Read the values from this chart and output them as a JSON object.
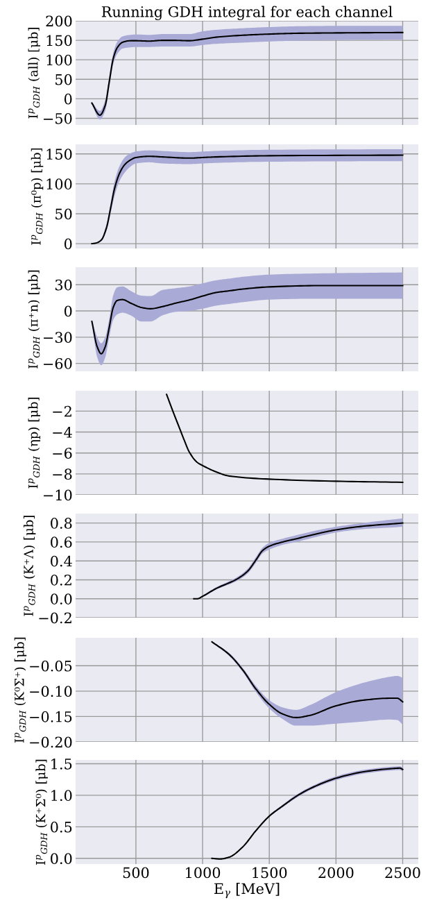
{
  "chart_data": [
    {
      "type": "line",
      "title": "Running GDH integral for each channel",
      "ylabel": "I$^{p}$$_{GDH}$ (all) [μb]",
      "xlim": [
        48,
        2617
      ],
      "xticks": [
        500,
        1000,
        1500,
        2000,
        2500
      ],
      "ylim": [
        -67,
        200
      ],
      "yticks": [
        -50,
        0,
        50,
        100,
        150,
        200
      ],
      "grid": true,
      "tick_labels": "y",
      "x": [
        170,
        230,
        270,
        300,
        330,
        360,
        400,
        460,
        500,
        600,
        700,
        780,
        900,
        1000,
        1100,
        1300,
        1500,
        1700,
        2000,
        2500
      ],
      "series": [
        {
          "color": "#000000",
          "values": [
            -11,
            -42,
            -17,
            43,
            103,
            131,
            145,
            149,
            149,
            148,
            150,
            150,
            149,
            153,
            158,
            163,
            166,
            168,
            169,
            170
          ],
          "lower": [
            -15,
            -53,
            -31,
            29,
            89,
            115,
            129,
            132,
            133,
            133,
            134,
            134,
            134,
            138,
            141,
            144,
            147,
            149,
            151,
            152
          ],
          "upper": [
            -8,
            -31,
            -3,
            57,
            117,
            146,
            160,
            164,
            165,
            164,
            166,
            166,
            166,
            173,
            177,
            181,
            184,
            186,
            187,
            187
          ]
        }
      ]
    },
    {
      "type": "line",
      "ylabel": "I$^{p}$$_{GDH}$ (π⁰p) [μb]",
      "xlim": [
        48,
        2617
      ],
      "xticks": [
        500,
        1000,
        1500,
        2000,
        2500
      ],
      "ylim": [
        -8,
        166
      ],
      "yticks": [
        0,
        50,
        100,
        150
      ],
      "grid": true,
      "tick_labels": "y",
      "x": [
        170,
        200,
        240,
        280,
        310,
        340,
        380,
        420,
        460,
        500,
        600,
        700,
        900,
        1000,
        1100,
        1500,
        2500
      ],
      "series": [
        {
          "color": "#000000",
          "values": [
            0,
            1,
            6,
            27,
            59,
            92,
            119,
            133,
            140,
            144,
            146,
            145,
            143,
            144,
            145,
            147,
            148
          ],
          "lower": [
            0,
            0,
            4,
            22,
            50,
            80,
            106,
            120,
            129,
            134,
            136,
            134,
            133,
            134,
            135,
            137,
            138
          ],
          "upper": [
            0,
            2,
            8,
            33,
            67,
            104,
            131,
            145,
            151,
            154,
            156,
            155,
            153,
            154,
            155,
            157,
            158
          ]
        }
      ]
    },
    {
      "type": "line",
      "ylabel": "I$^{p}$$_{GDH}$ (π⁺n) [μb]",
      "xlim": [
        48,
        2617
      ],
      "xticks": [
        500,
        1000,
        1500,
        2000,
        2500
      ],
      "ylim": [
        -69,
        50
      ],
      "yticks": [
        -60,
        -30,
        0,
        30
      ],
      "grid": true,
      "tick_labels": "y",
      "x": [
        170,
        210,
        240,
        270,
        300,
        330,
        360,
        400,
        460,
        540,
        610,
        700,
        800,
        900,
        1000,
        1100,
        1200,
        1300,
        1500,
        1900,
        2500
      ],
      "series": [
        {
          "color": "#000000",
          "values": [
            -12,
            -41,
            -49,
            -41,
            -19,
            4,
            12,
            13,
            9,
            4,
            2.5,
            5,
            9,
            12.5,
            17,
            21,
            23,
            25,
            27.5,
            29,
            29
          ],
          "lower": [
            -14,
            -53,
            -62,
            -53,
            -30,
            -10,
            -4,
            -2,
            -5,
            -12,
            -12,
            -5,
            -1,
            0,
            2.5,
            6,
            8,
            10,
            13,
            14,
            14
          ],
          "upper": [
            -10,
            -30,
            -37,
            -30,
            -9,
            18,
            27,
            28,
            23,
            17.5,
            17,
            24,
            26,
            28,
            31.5,
            35,
            37,
            39,
            41.5,
            43,
            44
          ]
        }
      ]
    },
    {
      "type": "line",
      "ylabel": "I$^{p}$$_{GDH}$ (ηp) [μb]",
      "xlim": [
        48,
        2617
      ],
      "xticks": [
        500,
        1000,
        1500,
        2000,
        2500
      ],
      "ylim": [
        -10,
        -0.05
      ],
      "yticks": [
        -10,
        -8,
        -6,
        -4,
        -2
      ],
      "grid": true,
      "tick_labels": "y",
      "x": [
        730,
        780,
        820,
        860,
        900,
        960,
        1000,
        1100,
        1200,
        1500,
        2000,
        2500
      ],
      "series": [
        {
          "color": "#000000",
          "values": [
            -0.4,
            -2.1,
            -3.4,
            -4.7,
            -5.9,
            -6.9,
            -7.2,
            -7.8,
            -8.2,
            -8.5,
            -8.7,
            -8.8
          ]
        }
      ]
    },
    {
      "type": "line",
      "ylabel": "I$^{p}$$_{GDH}$ (K⁺Λ) [μb]",
      "xlim": [
        48,
        2617
      ],
      "xticks": [
        500,
        1000,
        1500,
        2000,
        2500
      ],
      "ylim": [
        -0.2,
        0.9
      ],
      "yticks": [
        -0.2,
        {
          "value": 0,
          "label": "0.0"
        },
        0.2,
        0.4,
        0.6,
        0.8
      ],
      "grid": true,
      "tick_labels": "y",
      "x": [
        934,
        960,
        1000,
        1100,
        1260,
        1340,
        1400,
        1450,
        1500,
        1600,
        1700,
        1900,
        2000,
        2200,
        2500
      ],
      "series": [
        {
          "color": "#000000",
          "values": [
            0.0,
            0.0,
            0.026,
            0.107,
            0.21,
            0.295,
            0.41,
            0.51,
            0.555,
            0.6,
            0.633,
            0.7,
            0.728,
            0.766,
            0.8
          ],
          "lower": [
            0.0,
            0.0,
            0.018,
            0.095,
            0.19,
            0.27,
            0.38,
            0.48,
            0.52,
            0.57,
            0.6,
            0.67,
            0.7,
            0.735,
            0.76
          ],
          "upper": [
            0.0,
            0.0,
            0.034,
            0.12,
            0.23,
            0.32,
            0.44,
            0.54,
            0.59,
            0.635,
            0.67,
            0.735,
            0.76,
            0.8,
            0.85
          ]
        }
      ]
    },
    {
      "type": "line",
      "ylabel": "I$^{p}$$_{GDH}$ (K⁰Σ⁺) [μb]",
      "xlim": [
        48,
        2617
      ],
      "xticks": [
        500,
        1000,
        1500,
        2000,
        2500
      ],
      "ylim": [
        -0.2,
        0.005
      ],
      "yticks": [
        {
          "value": -0.2,
          "label": "−0.20"
        },
        -0.15,
        {
          "value": -0.1,
          "label": "−0.10"
        },
        -0.05
      ],
      "grid": true,
      "tick_labels": "y",
      "x": [
        1070,
        1200,
        1300,
        1400,
        1500,
        1600,
        1700,
        1800,
        2000,
        2200,
        2400,
        2460,
        2500
      ],
      "series": [
        {
          "color": "#000000",
          "values": [
            -0.003,
            -0.028,
            -0.058,
            -0.096,
            -0.126,
            -0.145,
            -0.152,
            -0.148,
            -0.129,
            -0.118,
            -0.114,
            -0.114,
            -0.121
          ],
          "lower": [
            -0.004,
            -0.031,
            -0.062,
            -0.102,
            -0.134,
            -0.155,
            -0.168,
            -0.168,
            -0.164,
            -0.16,
            -0.156,
            -0.157,
            -0.166
          ],
          "upper": [
            -0.002,
            -0.025,
            -0.054,
            -0.09,
            -0.118,
            -0.132,
            -0.137,
            -0.128,
            -0.102,
            -0.084,
            -0.072,
            -0.07,
            -0.074
          ]
        }
      ]
    },
    {
      "type": "line",
      "ylabel": "I$^{p}$$_{GDH}$ (K⁺Σ⁰) [μb]",
      "xlabel": "E$_{γ}$ [MeV]",
      "xlim": [
        48,
        2617
      ],
      "xticks": [
        500,
        1000,
        1500,
        2000,
        2500
      ],
      "ylim": [
        -0.09,
        1.56
      ],
      "yticks": [
        {
          "value": 0,
          "label": "0.0"
        },
        0.5,
        {
          "value": 1,
          "label": "1.0"
        },
        1.5
      ],
      "grid": true,
      "x": [
        1070,
        1130,
        1200,
        1300,
        1400,
        1500,
        1600,
        1700,
        1800,
        2000,
        2200,
        2400,
        2480,
        2500
      ],
      "series": [
        {
          "color": "#000000",
          "values": [
            0.0,
            -0.01,
            0.02,
            0.18,
            0.44,
            0.67,
            0.83,
            0.98,
            1.1,
            1.27,
            1.37,
            1.42,
            1.43,
            1.41
          ],
          "lower": [
            0.0,
            -0.014,
            0.018,
            0.175,
            0.43,
            0.655,
            0.81,
            0.955,
            1.075,
            1.24,
            1.34,
            1.39,
            1.4,
            1.38
          ],
          "upper": [
            0.0,
            -0.012,
            0.022,
            0.185,
            0.45,
            0.685,
            0.85,
            1.005,
            1.125,
            1.3,
            1.4,
            1.45,
            1.46,
            1.44
          ]
        }
      ]
    }
  ]
}
